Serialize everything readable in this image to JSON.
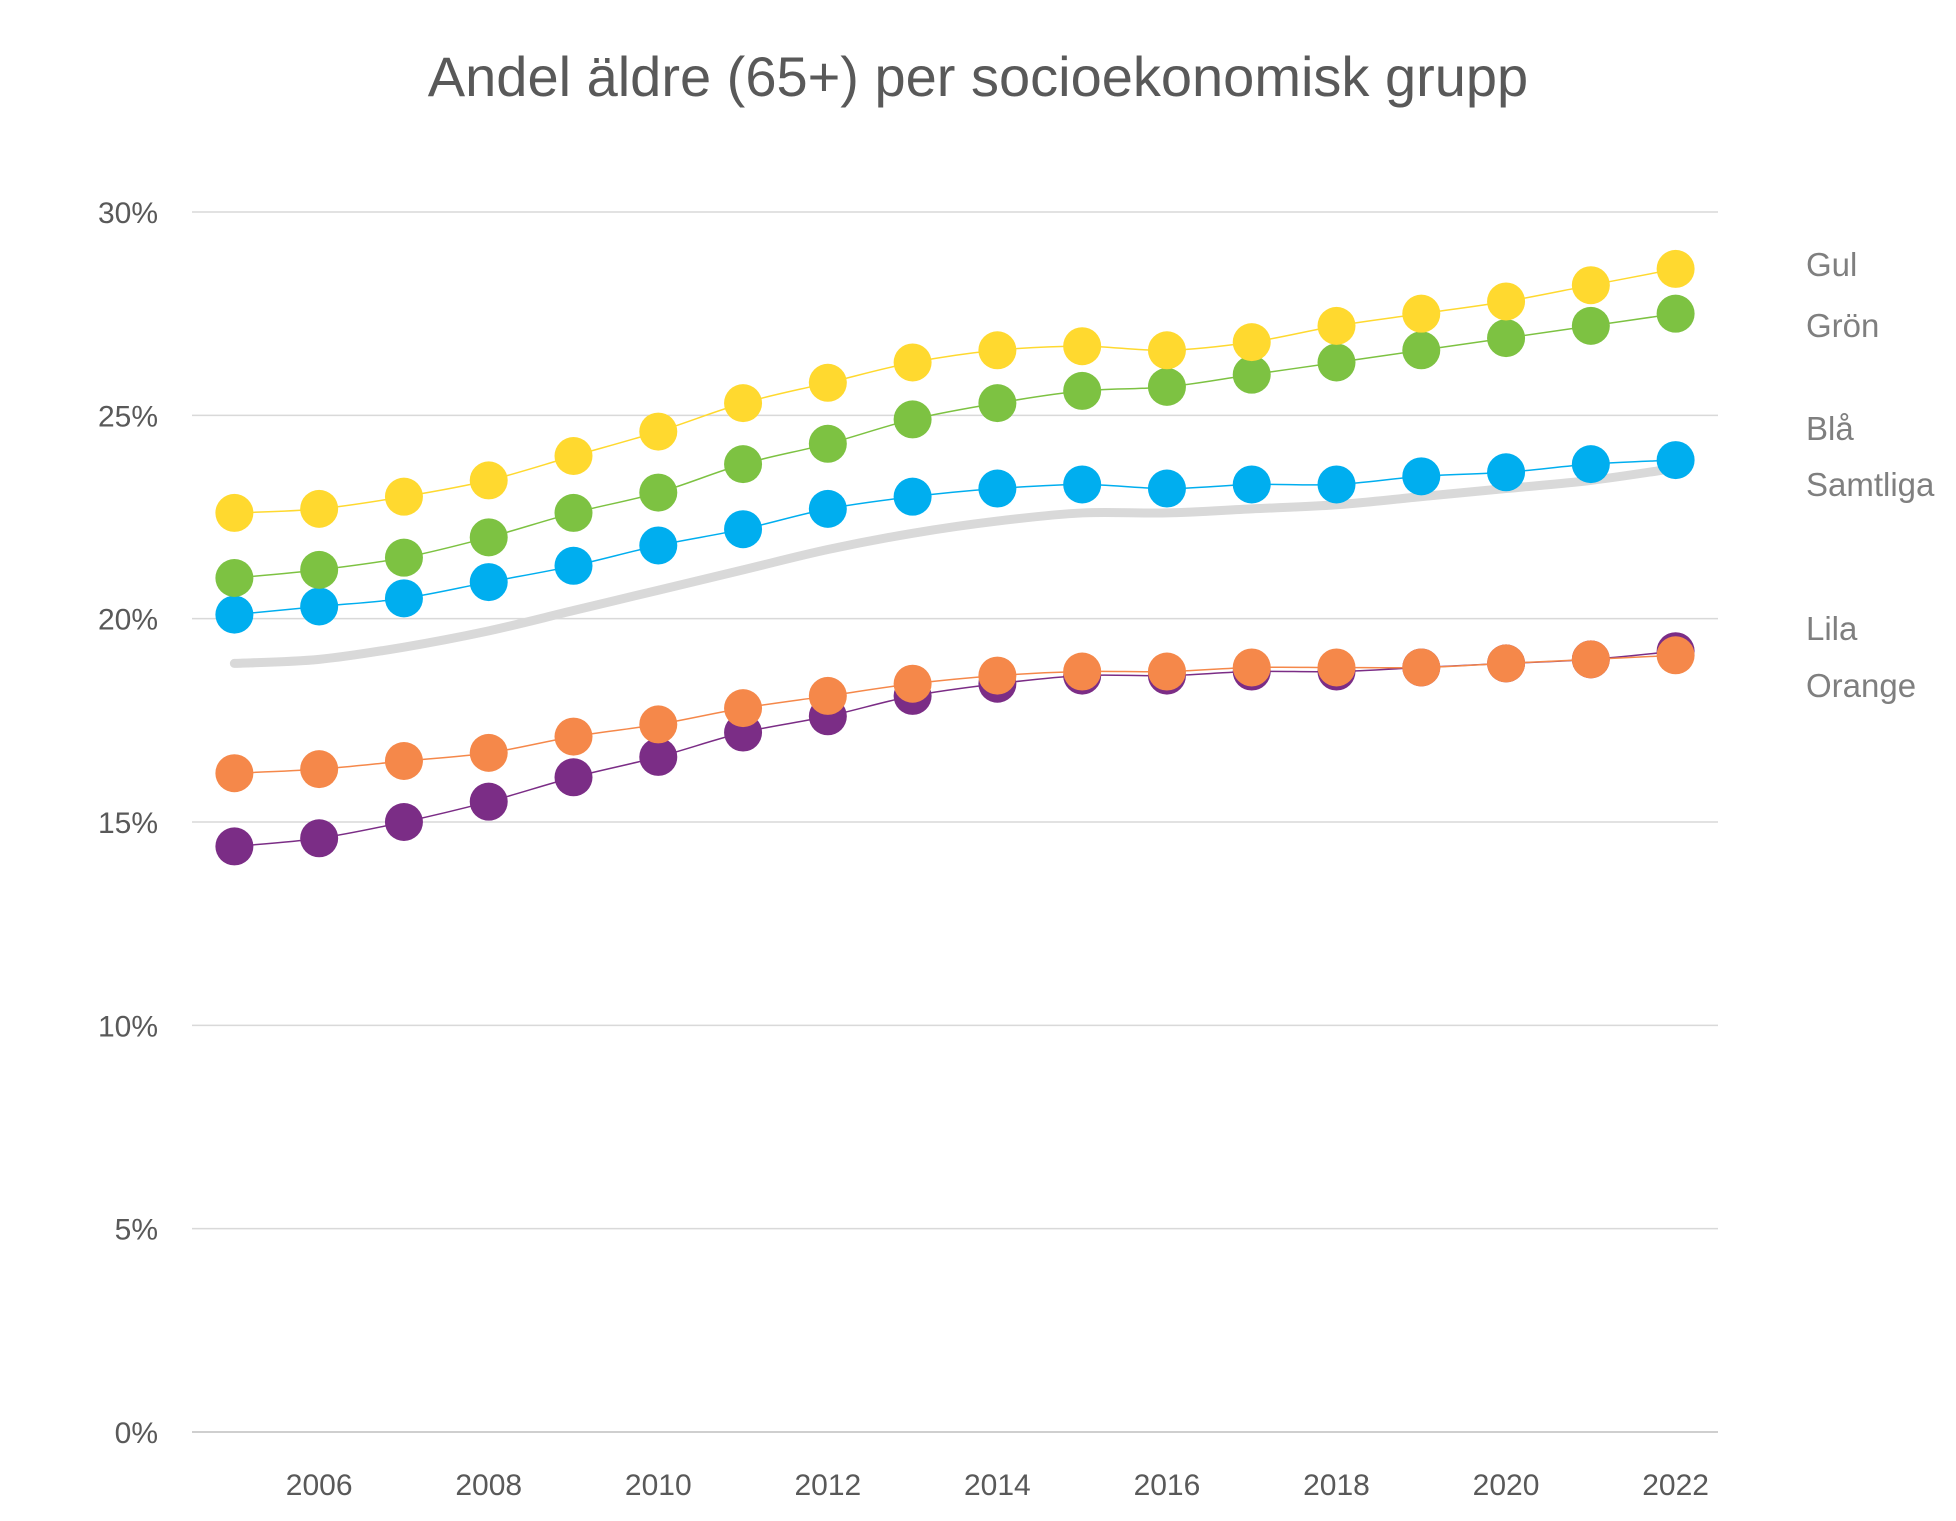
{
  "chart_data": {
    "type": "line",
    "title": "Andel äldre (65+) per socioekonomisk grupp",
    "xlabel": "",
    "ylabel": "",
    "x": [
      2005,
      2006,
      2007,
      2008,
      2009,
      2010,
      2011,
      2012,
      2013,
      2014,
      2015,
      2016,
      2017,
      2018,
      2019,
      2020,
      2021,
      2022
    ],
    "x_tick_labels": [
      "2006",
      "2008",
      "2010",
      "2012",
      "2014",
      "2016",
      "2018",
      "2020",
      "2022"
    ],
    "y_tick_labels": [
      "0%",
      "5%",
      "10%",
      "15%",
      "20%",
      "25%",
      "30%"
    ],
    "y_ticks": [
      0,
      5,
      10,
      15,
      20,
      25,
      30
    ],
    "xlim": [
      2004.5,
      2022.5
    ],
    "ylim": [
      0,
      30
    ],
    "grid": "horizontal",
    "legend": "direct labels at right",
    "series": [
      {
        "name": "Gul",
        "color": "#FFD92F",
        "marker": "circle",
        "values": [
          22.6,
          22.7,
          23.0,
          23.4,
          24.0,
          24.6,
          25.3,
          25.8,
          26.3,
          26.6,
          26.7,
          26.6,
          26.8,
          27.2,
          27.5,
          27.8,
          28.2,
          28.6
        ]
      },
      {
        "name": "Grön",
        "color": "#7DC242",
        "marker": "circle",
        "values": [
          21.0,
          21.2,
          21.5,
          22.0,
          22.6,
          23.1,
          23.8,
          24.3,
          24.9,
          25.3,
          25.6,
          25.7,
          26.0,
          26.3,
          26.6,
          26.9,
          27.2,
          27.5
        ]
      },
      {
        "name": "Blå",
        "color": "#00AEEF",
        "marker": "circle",
        "values": [
          20.1,
          20.3,
          20.5,
          20.9,
          21.3,
          21.8,
          22.2,
          22.7,
          23.0,
          23.2,
          23.3,
          23.2,
          23.3,
          23.3,
          23.5,
          23.6,
          23.8,
          23.9
        ]
      },
      {
        "name": "Samtliga",
        "color": "#D9D9D9",
        "marker": "none",
        "values": [
          18.9,
          19.0,
          19.3,
          19.7,
          20.2,
          20.7,
          21.2,
          21.7,
          22.1,
          22.4,
          22.6,
          22.6,
          22.7,
          22.8,
          23.0,
          23.2,
          23.4,
          23.7
        ]
      },
      {
        "name": "Lila",
        "color": "#7B2D86",
        "marker": "circle",
        "values": [
          14.4,
          14.6,
          15.0,
          15.5,
          16.1,
          16.6,
          17.2,
          17.6,
          18.1,
          18.4,
          18.6,
          18.6,
          18.7,
          18.7,
          18.8,
          18.9,
          19.0,
          19.2
        ]
      },
      {
        "name": "Orange",
        "color": "#F5884A",
        "marker": "circle",
        "values": [
          16.2,
          16.3,
          16.5,
          16.7,
          17.1,
          17.4,
          17.8,
          18.1,
          18.4,
          18.6,
          18.7,
          18.7,
          18.8,
          18.8,
          18.8,
          18.9,
          19.0,
          19.1
        ]
      }
    ]
  }
}
